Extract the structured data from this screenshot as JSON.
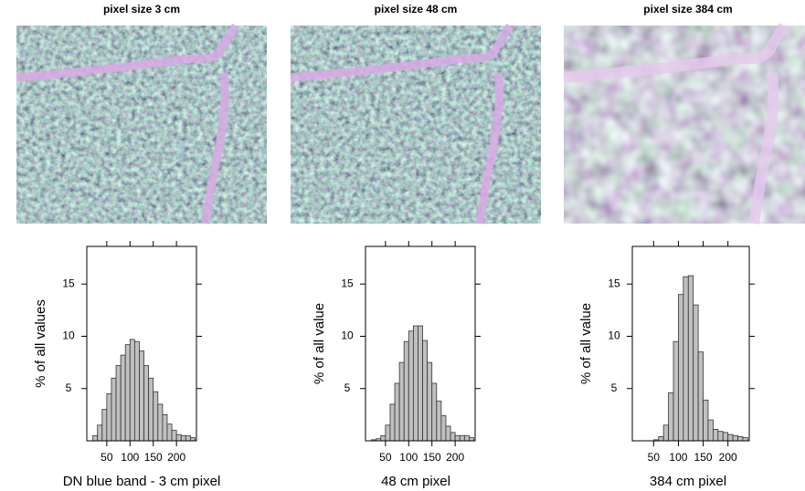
{
  "chart_data": [
    {
      "type": "histogram",
      "title": "pixel size 3 cm",
      "xlabel": "DN blue band - 3 cm pixel",
      "ylabel": "% of all values",
      "bins": [
        20,
        30,
        40,
        50,
        60,
        70,
        80,
        90,
        100,
        110,
        120,
        130,
        140,
        150,
        160,
        170,
        180,
        190,
        200,
        210,
        220,
        230,
        240
      ],
      "values": [
        0.5,
        1.5,
        3,
        4.5,
        6,
        7.2,
        8.2,
        9.2,
        9.7,
        9.5,
        8.6,
        7.2,
        6,
        4.7,
        3.5,
        2.5,
        1.6,
        1,
        0.6,
        0.5,
        0.5,
        0.3
      ],
      "color": "#c0c0c0",
      "xlim": [
        7,
        243
      ],
      "ylim": [
        0,
        18.6
      ],
      "xticks": [
        50,
        100,
        150,
        200
      ],
      "yticks": [
        5,
        10,
        15
      ]
    },
    {
      "type": "histogram",
      "title": "pixel size 48 cm",
      "xlabel": "48 cm pixel",
      "ylabel": "% of all value",
      "bins": [
        20,
        30,
        40,
        50,
        60,
        70,
        80,
        90,
        100,
        110,
        120,
        130,
        140,
        150,
        160,
        170,
        180,
        190,
        200,
        210,
        220,
        230,
        240
      ],
      "values": [
        0.1,
        0.2,
        0.5,
        1.5,
        3.5,
        5.5,
        7.5,
        9.5,
        10.5,
        11,
        11,
        9.6,
        7.5,
        5.5,
        3.8,
        2.4,
        1.4,
        0.8,
        0.5,
        0.5,
        0.5,
        0.3
      ],
      "color": "#c0c0c0",
      "xlim": [
        7,
        243
      ],
      "ylim": [
        0,
        18.6
      ],
      "xticks": [
        50,
        100,
        150,
        200
      ],
      "yticks": [
        5,
        10,
        15
      ]
    },
    {
      "type": "histogram",
      "title": "pixel size 384 cm",
      "xlabel": "384 cm pixel",
      "ylabel": "% of all value",
      "bins": [
        20,
        30,
        40,
        50,
        60,
        70,
        80,
        90,
        100,
        110,
        120,
        130,
        140,
        150,
        160,
        170,
        180,
        190,
        200,
        210,
        220,
        230,
        240
      ],
      "values": [
        0,
        0,
        0,
        0.1,
        0.4,
        1.5,
        4.6,
        9.5,
        14,
        15.7,
        15.8,
        13,
        8.5,
        3.9,
        2,
        1.1,
        0.9,
        0.8,
        0.6,
        0.5,
        0.4,
        0.3
      ],
      "color": "#c0c0c0",
      "xlim": [
        7,
        243
      ],
      "ylim": [
        0,
        18.6
      ],
      "xticks": [
        50,
        100,
        150,
        200
      ],
      "yticks": [
        5,
        10,
        15
      ]
    }
  ]
}
